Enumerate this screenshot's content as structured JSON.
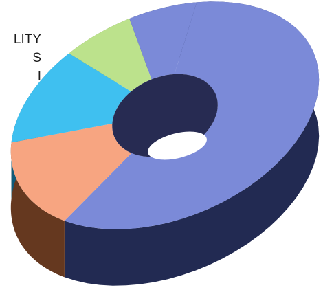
{
  "legend_fragments": [
    "LITY",
    "S",
    "I"
  ],
  "chart_data": {
    "type": "pie",
    "style": "3d-donut",
    "title": "",
    "segments": [
      {
        "value": 58,
        "top_color": "#7b8ad8",
        "side_color": "#222a52"
      },
      {
        "value": 15,
        "top_color": "#f7a581",
        "side_color": "#65381f"
      },
      {
        "value": 13,
        "top_color": "#3fc0f0",
        "side_color": "#0f5a78"
      },
      {
        "value": 7,
        "top_color": "#bce28c",
        "side_color": "#56703c"
      },
      {
        "value": 7,
        "top_color": "#7b8ad8",
        "side_color": "#222a52"
      }
    ],
    "hole_color": "#272b52"
  }
}
